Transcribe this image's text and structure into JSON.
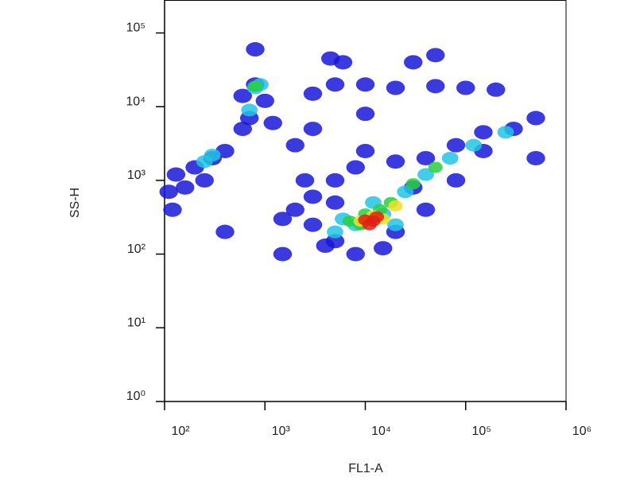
{
  "chart_data": {
    "type": "scatter",
    "xlabel": "FL1-A",
    "ylabel": "SS-H",
    "xscale": "log",
    "yscale": "log",
    "xlim": [
      100,
      1000000
    ],
    "ylim": [
      1,
      280000
    ],
    "xticks": [
      {
        "value": 100,
        "label": "10²"
      },
      {
        "value": 1000,
        "label": "10³"
      },
      {
        "value": 10000,
        "label": "10⁴"
      },
      {
        "value": 100000,
        "label": "10⁵"
      },
      {
        "value": 1000000,
        "label": "10⁶"
      }
    ],
    "yticks": [
      {
        "value": 1,
        "label": "10⁰"
      },
      {
        "value": 10,
        "label": "10¹"
      },
      {
        "value": 100,
        "label": "10²"
      },
      {
        "value": 1000,
        "label": "10³"
      },
      {
        "value": 10000,
        "label": "10⁴"
      },
      {
        "value": 100000,
        "label": "10⁵"
      }
    ],
    "series": [
      {
        "color": "#1818d8",
        "x": [
          2000,
          3000,
          3000,
          5000,
          5000,
          5000,
          8000,
          8000,
          15000,
          20000,
          20000,
          40000,
          40000,
          80000,
          80000,
          150000,
          150000,
          300000,
          500000,
          1500,
          2500,
          4000,
          10000,
          30000,
          5000,
          10000,
          20000,
          50000,
          100000,
          200000,
          4500,
          6000,
          3000,
          800,
          600,
          700,
          600,
          300,
          200,
          400,
          110,
          120,
          130,
          160,
          250,
          1000,
          1200,
          3000,
          10000,
          2000,
          800,
          50000,
          1500,
          30000,
          400,
          500000
        ],
        "values": [
          400,
          250,
          600,
          150,
          500,
          1000,
          100,
          1500,
          120,
          200,
          1800,
          400,
          2000,
          1000,
          3000,
          2500,
          4500,
          5000,
          7000,
          300,
          1000,
          130,
          2500,
          800,
          20000,
          20000,
          18000,
          19000,
          18000,
          17000,
          45000,
          40000,
          15000,
          20000,
          14000,
          7000,
          5000,
          2000,
          1500,
          2500,
          700,
          400,
          1200,
          800,
          1000,
          12000,
          6000,
          5000,
          8000,
          3000,
          60000,
          50000,
          100,
          40000,
          200,
          2000
        ]
      },
      {
        "color": "#22c4e4",
        "x": [
          6000,
          8000,
          15000,
          12000,
          25000,
          40000,
          70000,
          120000,
          250000,
          5000,
          800,
          900,
          300,
          250,
          700,
          20000
        ],
        "values": [
          300,
          250,
          350,
          500,
          700,
          1200,
          2000,
          3000,
          4500,
          200,
          18000,
          20000,
          2200,
          1800,
          9000,
          250
        ]
      },
      {
        "color": "#28d040",
        "x": [
          7000,
          9000,
          14000,
          18000,
          30000,
          50000,
          800,
          10000
        ],
        "values": [
          280,
          250,
          400,
          500,
          900,
          1500,
          19000,
          350
        ]
      },
      {
        "color": "#f0e020",
        "x": [
          9000,
          12000,
          15000,
          20000
        ],
        "values": [
          280,
          330,
          300,
          450
        ]
      },
      {
        "color": "#e02010",
        "x": [
          10000,
          12000,
          13000,
          11000
        ],
        "values": [
          290,
          280,
          320,
          250
        ]
      }
    ]
  }
}
